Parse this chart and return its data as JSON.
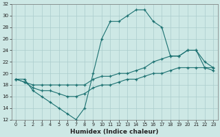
{
  "xlabel": "Humidex (Indice chaleur)",
  "background_color": "#cde8e5",
  "grid_color": "#aacccc",
  "line_color": "#1a7070",
  "xlim": [
    -0.5,
    23.5
  ],
  "ylim": [
    12,
    32
  ],
  "xticks": [
    0,
    1,
    2,
    3,
    4,
    5,
    6,
    7,
    8,
    9,
    10,
    11,
    12,
    13,
    14,
    15,
    16,
    17,
    18,
    19,
    20,
    21,
    22,
    23
  ],
  "yticks": [
    12,
    14,
    16,
    18,
    20,
    22,
    24,
    26,
    28,
    30,
    32
  ],
  "series": [
    {
      "x": [
        0,
        1,
        2,
        3,
        4,
        5,
        6,
        7,
        8,
        9,
        10,
        11,
        12,
        13,
        14,
        15,
        16,
        17,
        18,
        19,
        20,
        21,
        22,
        23
      ],
      "y": [
        19,
        19,
        17,
        16,
        15,
        14,
        13,
        12,
        14,
        20,
        26,
        29,
        29,
        30,
        31,
        31,
        29,
        28,
        23,
        23,
        24,
        24,
        21,
        21
      ]
    },
    {
      "x": [
        0,
        1,
        2,
        3,
        4,
        5,
        6,
        7,
        8,
        9,
        10,
        11,
        12,
        13,
        14,
        15,
        16,
        17,
        18,
        19,
        20,
        21,
        22,
        23
      ],
      "y": [
        19,
        18.5,
        18,
        18,
        18,
        18,
        18,
        18,
        18,
        19,
        19.5,
        19.5,
        20,
        20,
        20.5,
        21,
        22,
        22.5,
        23,
        23,
        24,
        24,
        22,
        21
      ]
    },
    {
      "x": [
        0,
        1,
        2,
        3,
        4,
        5,
        6,
        7,
        8,
        9,
        10,
        11,
        12,
        13,
        14,
        15,
        16,
        17,
        18,
        19,
        20,
        21,
        22,
        23
      ],
      "y": [
        19,
        18.5,
        17.5,
        17,
        17,
        16.5,
        16,
        16,
        16.5,
        17.5,
        18,
        18,
        18.5,
        19,
        19,
        19.5,
        20,
        20,
        20.5,
        21,
        21,
        21,
        21,
        20.5
      ]
    }
  ]
}
